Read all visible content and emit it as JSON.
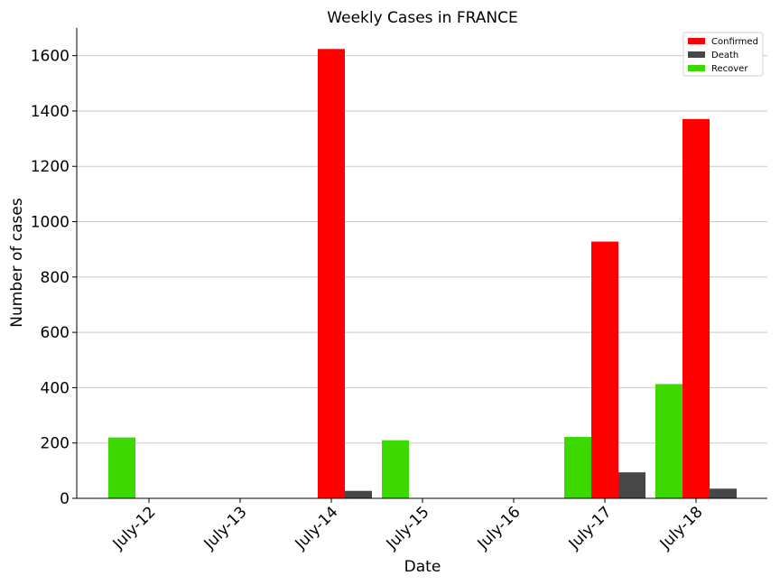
{
  "chart_data": {
    "type": "bar",
    "title": "Weekly Cases in FRANCE",
    "xlabel": "Date",
    "ylabel": "Number of cases",
    "categories": [
      "July-12",
      "July-13",
      "July-14",
      "July-15",
      "July-16",
      "July-17",
      "July-18"
    ],
    "series": [
      {
        "name": "Recover",
        "color": "#3dd800",
        "values": [
          220,
          0,
          0,
          210,
          0,
          222,
          413
        ]
      },
      {
        "name": "Confirmed",
        "color": "#ff0000",
        "values": [
          0,
          0,
          1624,
          0,
          0,
          928,
          1371
        ]
      },
      {
        "name": "Death",
        "color": "#474747",
        "values": [
          0,
          0,
          27,
          0,
          0,
          94,
          35
        ]
      }
    ],
    "legend_order": [
      "Confirmed",
      "Death",
      "Recover"
    ],
    "legend_position": "top-right",
    "ylim": [
      0,
      1700
    ],
    "yticks": [
      0,
      200,
      400,
      600,
      800,
      1000,
      1200,
      1400,
      1600
    ],
    "grid": "horizontal"
  }
}
